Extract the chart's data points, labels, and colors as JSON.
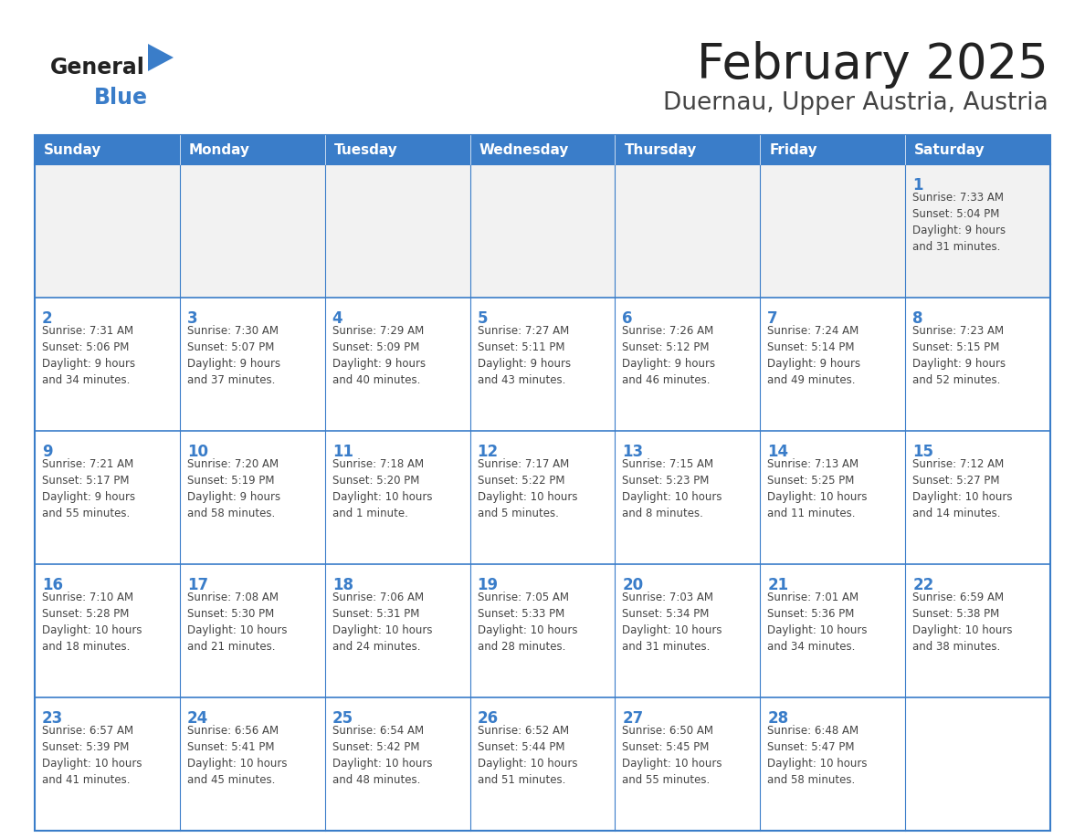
{
  "title": "February 2025",
  "subtitle": "Duernau, Upper Austria, Austria",
  "header_bg": "#3A7DC9",
  "header_text_color": "#FFFFFF",
  "cell_bg_normal": "#FFFFFF",
  "cell_bg_first": "#F2F2F2",
  "border_color": "#3A7DC9",
  "border_color_light": "#CCCCCC",
  "day_headers": [
    "Sunday",
    "Monday",
    "Tuesday",
    "Wednesday",
    "Thursday",
    "Friday",
    "Saturday"
  ],
  "title_color": "#222222",
  "subtitle_color": "#444444",
  "day_number_color": "#3A7DC9",
  "cell_text_color": "#444444",
  "logo_general_color": "#222222",
  "logo_blue_color": "#3A7DC9",
  "logo_triangle_color": "#3A7DC9",
  "calendar_data": [
    [
      null,
      null,
      null,
      null,
      null,
      null,
      1
    ],
    [
      2,
      3,
      4,
      5,
      6,
      7,
      8
    ],
    [
      9,
      10,
      11,
      12,
      13,
      14,
      15
    ],
    [
      16,
      17,
      18,
      19,
      20,
      21,
      22
    ],
    [
      23,
      24,
      25,
      26,
      27,
      28,
      null
    ]
  ],
  "cell_info": {
    "1": "Sunrise: 7:33 AM\nSunset: 5:04 PM\nDaylight: 9 hours\nand 31 minutes.",
    "2": "Sunrise: 7:31 AM\nSunset: 5:06 PM\nDaylight: 9 hours\nand 34 minutes.",
    "3": "Sunrise: 7:30 AM\nSunset: 5:07 PM\nDaylight: 9 hours\nand 37 minutes.",
    "4": "Sunrise: 7:29 AM\nSunset: 5:09 PM\nDaylight: 9 hours\nand 40 minutes.",
    "5": "Sunrise: 7:27 AM\nSunset: 5:11 PM\nDaylight: 9 hours\nand 43 minutes.",
    "6": "Sunrise: 7:26 AM\nSunset: 5:12 PM\nDaylight: 9 hours\nand 46 minutes.",
    "7": "Sunrise: 7:24 AM\nSunset: 5:14 PM\nDaylight: 9 hours\nand 49 minutes.",
    "8": "Sunrise: 7:23 AM\nSunset: 5:15 PM\nDaylight: 9 hours\nand 52 minutes.",
    "9": "Sunrise: 7:21 AM\nSunset: 5:17 PM\nDaylight: 9 hours\nand 55 minutes.",
    "10": "Sunrise: 7:20 AM\nSunset: 5:19 PM\nDaylight: 9 hours\nand 58 minutes.",
    "11": "Sunrise: 7:18 AM\nSunset: 5:20 PM\nDaylight: 10 hours\nand 1 minute.",
    "12": "Sunrise: 7:17 AM\nSunset: 5:22 PM\nDaylight: 10 hours\nand 5 minutes.",
    "13": "Sunrise: 7:15 AM\nSunset: 5:23 PM\nDaylight: 10 hours\nand 8 minutes.",
    "14": "Sunrise: 7:13 AM\nSunset: 5:25 PM\nDaylight: 10 hours\nand 11 minutes.",
    "15": "Sunrise: 7:12 AM\nSunset: 5:27 PM\nDaylight: 10 hours\nand 14 minutes.",
    "16": "Sunrise: 7:10 AM\nSunset: 5:28 PM\nDaylight: 10 hours\nand 18 minutes.",
    "17": "Sunrise: 7:08 AM\nSunset: 5:30 PM\nDaylight: 10 hours\nand 21 minutes.",
    "18": "Sunrise: 7:06 AM\nSunset: 5:31 PM\nDaylight: 10 hours\nand 24 minutes.",
    "19": "Sunrise: 7:05 AM\nSunset: 5:33 PM\nDaylight: 10 hours\nand 28 minutes.",
    "20": "Sunrise: 7:03 AM\nSunset: 5:34 PM\nDaylight: 10 hours\nand 31 minutes.",
    "21": "Sunrise: 7:01 AM\nSunset: 5:36 PM\nDaylight: 10 hours\nand 34 minutes.",
    "22": "Sunrise: 6:59 AM\nSunset: 5:38 PM\nDaylight: 10 hours\nand 38 minutes.",
    "23": "Sunrise: 6:57 AM\nSunset: 5:39 PM\nDaylight: 10 hours\nand 41 minutes.",
    "24": "Sunrise: 6:56 AM\nSunset: 5:41 PM\nDaylight: 10 hours\nand 45 minutes.",
    "25": "Sunrise: 6:54 AM\nSunset: 5:42 PM\nDaylight: 10 hours\nand 48 minutes.",
    "26": "Sunrise: 6:52 AM\nSunset: 5:44 PM\nDaylight: 10 hours\nand 51 minutes.",
    "27": "Sunrise: 6:50 AM\nSunset: 5:45 PM\nDaylight: 10 hours\nand 55 minutes.",
    "28": "Sunrise: 6:48 AM\nSunset: 5:47 PM\nDaylight: 10 hours\nand 58 minutes."
  }
}
